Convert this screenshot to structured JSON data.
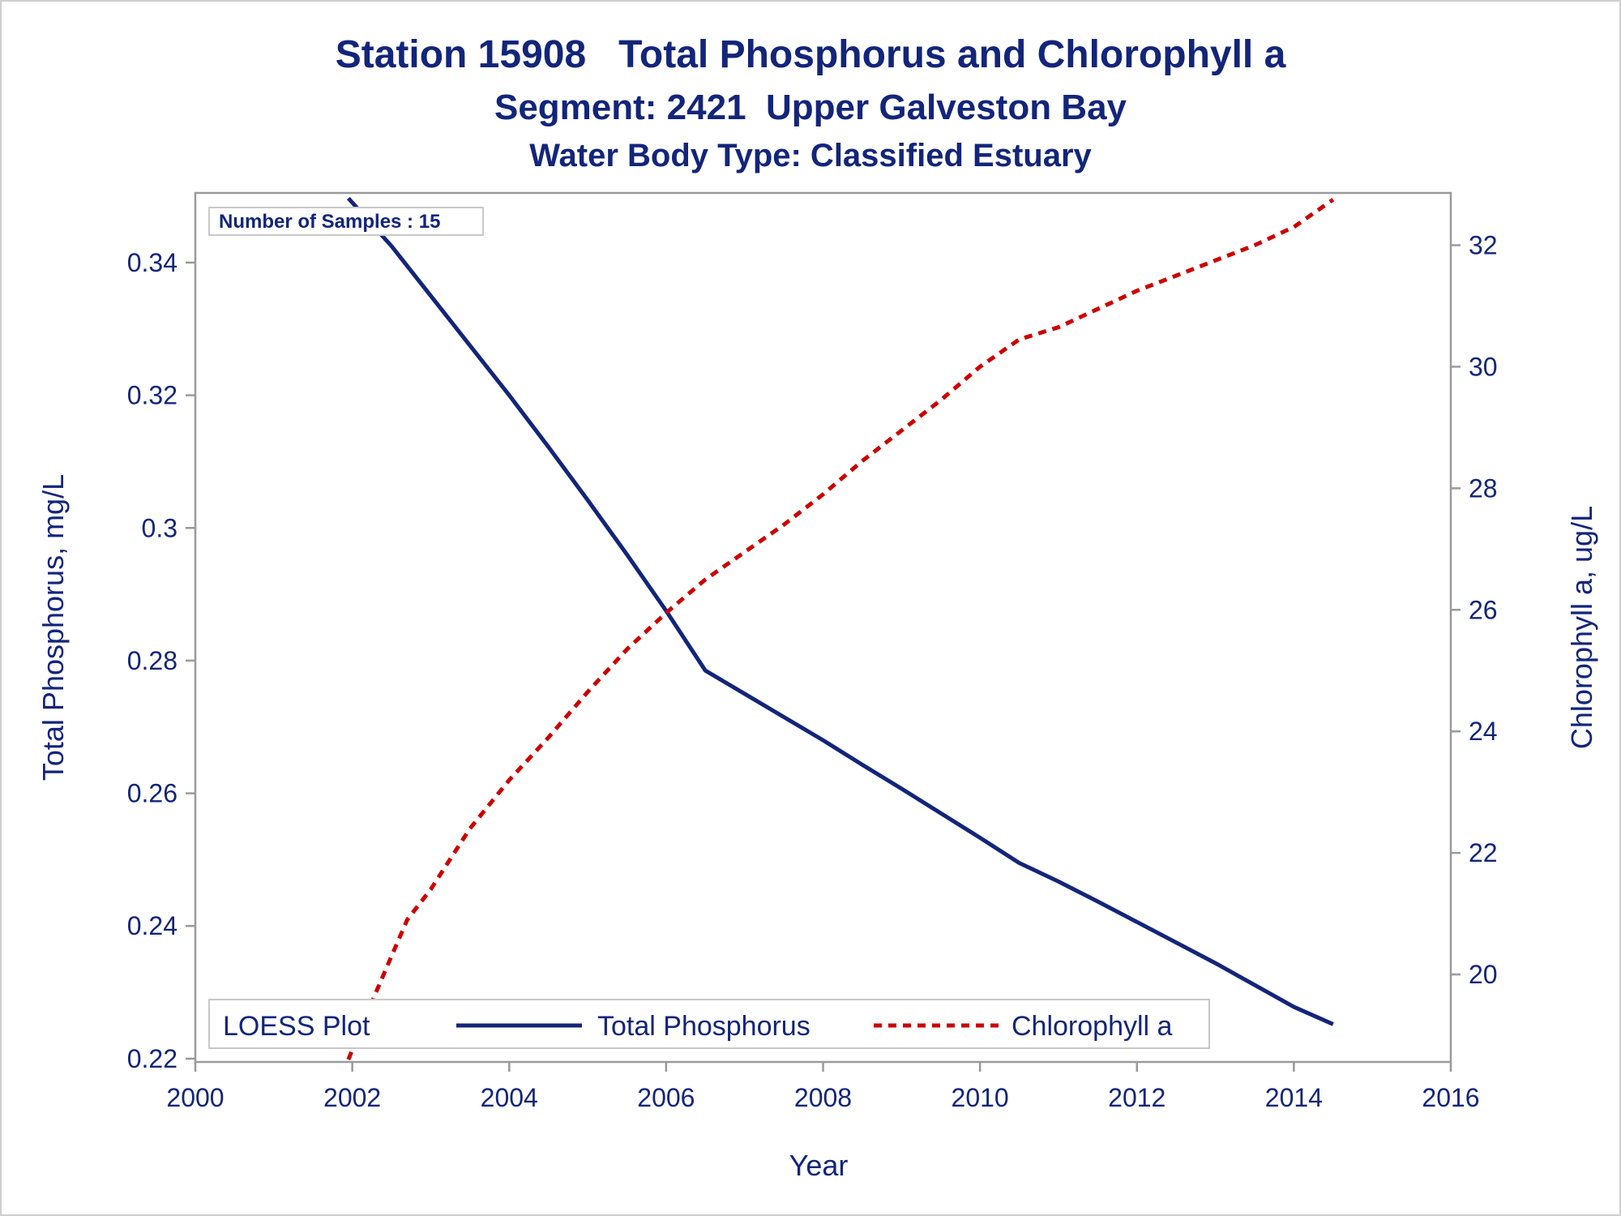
{
  "chart_data": {
    "type": "line",
    "title": "Station 15908   Total Phosphorus and Chlorophyll a",
    "subtitle": "Segment: 2421  Upper Galveston Bay",
    "subtitle2": "Water Body Type: Classified Estuary",
    "xlabel": "Year",
    "ylabel": "Total Phosphorus, mg/L",
    "y2label": "Chlorophyll a, ug/L",
    "xlim": [
      2000,
      2016
    ],
    "ylim": [
      0.2195,
      0.3505
    ],
    "y2lim": [
      18.56,
      32.86
    ],
    "x_ticks": [
      "2000",
      "2002",
      "2004",
      "2006",
      "2008",
      "2010",
      "2012",
      "2014",
      "2016"
    ],
    "y_ticks": [
      "0.22",
      "0.24",
      "0.26",
      "0.28",
      "0.3",
      "0.32",
      "0.34"
    ],
    "y2_ticks": [
      "20",
      "22",
      "24",
      "26",
      "28",
      "30",
      "32"
    ],
    "grid": false,
    "annotation": "Number of Samples : 15",
    "legend": {
      "title": "LOESS Plot",
      "position": "bottom-left"
    },
    "series": [
      {
        "name": "Total Phosphorus",
        "axis": "left",
        "color": "#13257a",
        "style": "solid",
        "x": [
          2001.95,
          2002.5,
          2003.0,
          2003.5,
          2004.0,
          2004.5,
          2005.0,
          2005.5,
          2006.0,
          2006.5,
          2007.0,
          2007.5,
          2008.0,
          2008.5,
          2009.0,
          2009.5,
          2010.0,
          2010.5,
          2011.0,
          2011.5,
          2012.0,
          2012.5,
          2013.0,
          2013.5,
          2014.0,
          2014.5
        ],
        "values": [
          0.3497,
          0.3425,
          0.335,
          0.3275,
          0.32,
          0.3122,
          0.3042,
          0.296,
          0.2875,
          0.2785,
          0.275,
          0.2715,
          0.268,
          0.2643,
          0.2607,
          0.257,
          0.2533,
          0.2495,
          0.2467,
          0.2437,
          0.2406,
          0.2375,
          0.2344,
          0.2311,
          0.2278,
          0.2252
        ]
      },
      {
        "name": "Chlorophyll a",
        "axis": "right",
        "color": "#cc0000",
        "style": "dashed",
        "x": [
          2001.95,
          2002.3,
          2002.7,
          2003.0,
          2003.5,
          2004.0,
          2004.5,
          2005.0,
          2005.5,
          2006.0,
          2006.5,
          2007.0,
          2007.5,
          2008.0,
          2008.5,
          2009.0,
          2009.5,
          2010.0,
          2010.5,
          2011.0,
          2011.5,
          2012.0,
          2012.5,
          2013.0,
          2013.5,
          2014.0,
          2014.5
        ],
        "values": [
          18.6,
          19.7,
          20.9,
          21.4,
          22.4,
          23.2,
          23.9,
          24.65,
          25.35,
          25.95,
          26.5,
          26.95,
          27.4,
          27.9,
          28.45,
          28.95,
          29.45,
          30.0,
          30.45,
          30.65,
          30.95,
          31.25,
          31.5,
          31.75,
          32.0,
          32.3,
          32.75
        ]
      }
    ]
  }
}
